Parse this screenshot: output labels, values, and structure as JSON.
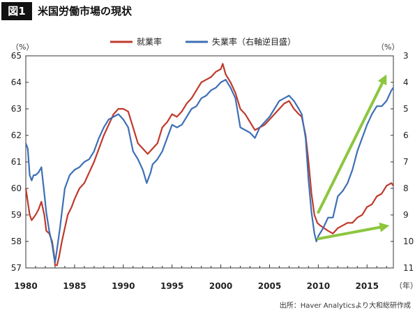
{
  "figure_label": "図1",
  "title": "米国労働市場の現状",
  "source": "出所：Haver Analyticsより大和総研作成",
  "chart_data": {
    "type": "line",
    "x_unit": "（年）",
    "y_left_unit": "（%）",
    "y_right_unit": "（%）",
    "y_left_range": [
      57,
      65
    ],
    "y_right_range": [
      3,
      11
    ],
    "y_right_inverted": true,
    "y_left_ticks": [
      57,
      58,
      59,
      60,
      61,
      62,
      63,
      64,
      65
    ],
    "y_right_ticks": [
      3,
      4,
      5,
      6,
      7,
      8,
      9,
      10,
      11
    ],
    "x_range": [
      1980,
      2017.7
    ],
    "x_ticks": [
      1980,
      1985,
      1990,
      1995,
      2000,
      2005,
      2010,
      2015
    ],
    "legend_position": "top-center",
    "series": [
      {
        "name": "就業率",
        "axis": "left",
        "color": "#c0392b",
        "points": [
          [
            1980.0,
            60.0
          ],
          [
            1980.2,
            59.5
          ],
          [
            1980.4,
            59.0
          ],
          [
            1980.6,
            58.8
          ],
          [
            1980.8,
            58.9
          ],
          [
            1981.0,
            59.0
          ],
          [
            1981.3,
            59.2
          ],
          [
            1981.6,
            59.5
          ],
          [
            1981.9,
            59.0
          ],
          [
            1982.1,
            58.4
          ],
          [
            1982.4,
            58.3
          ],
          [
            1982.7,
            58.0
          ],
          [
            1982.9,
            57.5
          ],
          [
            1983.0,
            57.1
          ],
          [
            1983.2,
            57.1
          ],
          [
            1983.4,
            57.4
          ],
          [
            1983.7,
            58.0
          ],
          [
            1984.0,
            58.5
          ],
          [
            1984.3,
            59.0
          ],
          [
            1984.7,
            59.3
          ],
          [
            1985.0,
            59.6
          ],
          [
            1985.5,
            60.0
          ],
          [
            1986.0,
            60.2
          ],
          [
            1986.5,
            60.6
          ],
          [
            1987.0,
            61.0
          ],
          [
            1987.5,
            61.5
          ],
          [
            1988.0,
            62.0
          ],
          [
            1988.5,
            62.4
          ],
          [
            1989.0,
            62.8
          ],
          [
            1989.5,
            63.0
          ],
          [
            1990.0,
            63.0
          ],
          [
            1990.5,
            62.9
          ],
          [
            1991.0,
            62.3
          ],
          [
            1991.5,
            61.7
          ],
          [
            1992.0,
            61.5
          ],
          [
            1992.5,
            61.3
          ],
          [
            1993.0,
            61.5
          ],
          [
            1993.5,
            61.7
          ],
          [
            1994.0,
            62.3
          ],
          [
            1994.5,
            62.5
          ],
          [
            1995.0,
            62.8
          ],
          [
            1995.5,
            62.7
          ],
          [
            1996.0,
            62.9
          ],
          [
            1996.5,
            63.2
          ],
          [
            1997.0,
            63.4
          ],
          [
            1997.5,
            63.7
          ],
          [
            1998.0,
            64.0
          ],
          [
            1998.5,
            64.1
          ],
          [
            1999.0,
            64.2
          ],
          [
            1999.5,
            64.4
          ],
          [
            2000.0,
            64.5
          ],
          [
            2000.2,
            64.7
          ],
          [
            2000.5,
            64.3
          ],
          [
            2001.0,
            64.0
          ],
          [
            2001.5,
            63.6
          ],
          [
            2002.0,
            63.0
          ],
          [
            2002.5,
            62.8
          ],
          [
            2003.0,
            62.5
          ],
          [
            2003.5,
            62.2
          ],
          [
            2004.0,
            62.3
          ],
          [
            2004.5,
            62.4
          ],
          [
            2005.0,
            62.6
          ],
          [
            2005.5,
            62.8
          ],
          [
            2006.0,
            63.0
          ],
          [
            2006.5,
            63.2
          ],
          [
            2007.0,
            63.3
          ],
          [
            2007.5,
            63.0
          ],
          [
            2008.0,
            62.8
          ],
          [
            2008.3,
            62.7
          ],
          [
            2008.7,
            62.0
          ],
          [
            2009.0,
            61.0
          ],
          [
            2009.3,
            59.8
          ],
          [
            2009.6,
            59.0
          ],
          [
            2009.9,
            58.7
          ],
          [
            2010.2,
            58.6
          ],
          [
            2010.6,
            58.5
          ],
          [
            2011.0,
            58.4
          ],
          [
            2011.5,
            58.3
          ],
          [
            2012.0,
            58.5
          ],
          [
            2012.5,
            58.6
          ],
          [
            2013.0,
            58.7
          ],
          [
            2013.5,
            58.7
          ],
          [
            2014.0,
            58.9
          ],
          [
            2014.5,
            59.0
          ],
          [
            2015.0,
            59.3
          ],
          [
            2015.5,
            59.4
          ],
          [
            2016.0,
            59.7
          ],
          [
            2016.5,
            59.8
          ],
          [
            2017.0,
            60.1
          ],
          [
            2017.5,
            60.2
          ],
          [
            2017.7,
            60.1
          ]
        ]
      },
      {
        "name": "失業率（右軸逆目盛）",
        "axis": "right",
        "color": "#3d6fb5",
        "points": [
          [
            1980.0,
            6.3
          ],
          [
            1980.2,
            6.5
          ],
          [
            1980.4,
            7.5
          ],
          [
            1980.6,
            7.7
          ],
          [
            1980.8,
            7.5
          ],
          [
            1981.0,
            7.5
          ],
          [
            1981.3,
            7.4
          ],
          [
            1981.6,
            7.2
          ],
          [
            1981.9,
            8.2
          ],
          [
            1982.1,
            8.9
          ],
          [
            1982.4,
            9.6
          ],
          [
            1982.7,
            10.1
          ],
          [
            1982.9,
            10.6
          ],
          [
            1983.0,
            10.8
          ],
          [
            1983.2,
            10.3
          ],
          [
            1983.5,
            9.5
          ],
          [
            1983.8,
            8.6
          ],
          [
            1984.0,
            8.0
          ],
          [
            1984.5,
            7.5
          ],
          [
            1985.0,
            7.3
          ],
          [
            1985.5,
            7.2
          ],
          [
            1986.0,
            7.0
          ],
          [
            1986.5,
            6.9
          ],
          [
            1987.0,
            6.6
          ],
          [
            1987.5,
            6.1
          ],
          [
            1988.0,
            5.7
          ],
          [
            1988.5,
            5.4
          ],
          [
            1989.0,
            5.3
          ],
          [
            1989.5,
            5.2
          ],
          [
            1990.0,
            5.4
          ],
          [
            1990.5,
            5.7
          ],
          [
            1991.0,
            6.6
          ],
          [
            1991.5,
            6.9
          ],
          [
            1992.0,
            7.3
          ],
          [
            1992.4,
            7.8
          ],
          [
            1992.8,
            7.4
          ],
          [
            1993.0,
            7.1
          ],
          [
            1993.5,
            6.9
          ],
          [
            1994.0,
            6.6
          ],
          [
            1994.5,
            6.1
          ],
          [
            1995.0,
            5.6
          ],
          [
            1995.5,
            5.7
          ],
          [
            1996.0,
            5.6
          ],
          [
            1996.5,
            5.3
          ],
          [
            1997.0,
            5.0
          ],
          [
            1997.5,
            4.9
          ],
          [
            1998.0,
            4.6
          ],
          [
            1998.5,
            4.5
          ],
          [
            1999.0,
            4.3
          ],
          [
            1999.5,
            4.2
          ],
          [
            2000.0,
            4.0
          ],
          [
            2000.5,
            3.9
          ],
          [
            2001.0,
            4.2
          ],
          [
            2001.5,
            4.6
          ],
          [
            2002.0,
            5.7
          ],
          [
            2002.5,
            5.8
          ],
          [
            2003.0,
            5.9
          ],
          [
            2003.5,
            6.1
          ],
          [
            2004.0,
            5.7
          ],
          [
            2004.5,
            5.5
          ],
          [
            2005.0,
            5.3
          ],
          [
            2005.5,
            5.0
          ],
          [
            2006.0,
            4.7
          ],
          [
            2006.5,
            4.6
          ],
          [
            2007.0,
            4.5
          ],
          [
            2007.5,
            4.7
          ],
          [
            2008.0,
            5.0
          ],
          [
            2008.3,
            5.2
          ],
          [
            2008.7,
            6.1
          ],
          [
            2009.0,
            7.7
          ],
          [
            2009.3,
            8.9
          ],
          [
            2009.6,
            9.7
          ],
          [
            2009.8,
            10.0
          ],
          [
            2010.0,
            9.8
          ],
          [
            2010.5,
            9.5
          ],
          [
            2011.0,
            9.1
          ],
          [
            2011.5,
            9.1
          ],
          [
            2012.0,
            8.3
          ],
          [
            2012.5,
            8.1
          ],
          [
            2013.0,
            7.8
          ],
          [
            2013.5,
            7.3
          ],
          [
            2014.0,
            6.6
          ],
          [
            2014.5,
            6.1
          ],
          [
            2015.0,
            5.6
          ],
          [
            2015.5,
            5.2
          ],
          [
            2016.0,
            4.9
          ],
          [
            2016.5,
            4.9
          ],
          [
            2017.0,
            4.7
          ],
          [
            2017.5,
            4.3
          ],
          [
            2017.7,
            4.2
          ]
        ]
      }
    ],
    "annotations": [
      {
        "type": "arrow",
        "color": "#8cc63f",
        "from": [
          2010.0,
          59.1
        ],
        "to": [
          2017.0,
          64.3
        ]
      },
      {
        "type": "arrow",
        "color": "#8cc63f",
        "from": [
          2010.0,
          58.1
        ],
        "to": [
          2017.3,
          58.6
        ]
      }
    ]
  }
}
